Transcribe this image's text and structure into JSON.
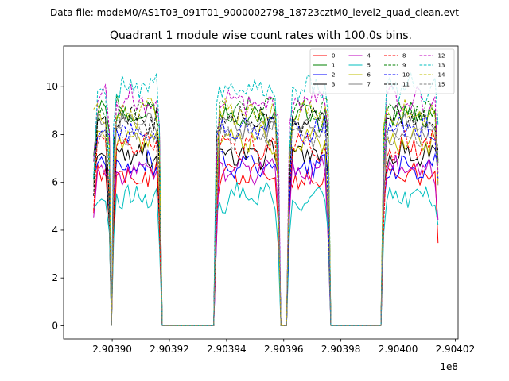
{
  "figure": {
    "suptitle": "Data file: modeM0/AS1T03_091T01_9000002798_18723cztM0_level2_quad_clean.evt"
  },
  "chart_data": {
    "type": "line",
    "title": "Quadrant 1 module wise count rates with 100.0s bins.",
    "xlabel": "",
    "ylabel": "",
    "x_offset_text": "1e8",
    "x_tick_values": [
      2.9039,
      2.90392,
      2.90394,
      2.90396,
      2.90398,
      2.904,
      2.90402
    ],
    "x_tick_labels": [
      "2.90390",
      "2.90392",
      "2.90394",
      "2.90396",
      "2.90398",
      "2.90400",
      "2.90402"
    ],
    "xlim": [
      2.903883,
      2.904021
    ],
    "y_tick_values": [
      0,
      2,
      4,
      6,
      8,
      10
    ],
    "y_tick_labels": [
      "0",
      "2",
      "4",
      "6",
      "8",
      "10"
    ],
    "ylim": [
      -0.55,
      11.7
    ],
    "legend_position": "upper right",
    "legend_columns": 4,
    "bin_width_s": 100,
    "segments": [
      {
        "start": 2.9038935,
        "end": 2.903899,
        "n": 5
      },
      {
        "start": 2.9039005,
        "end": 2.9039165,
        "n": 17
      },
      {
        "start": 2.9039365,
        "end": 2.903958,
        "n": 22
      },
      {
        "start": 2.903962,
        "end": 2.9039755,
        "n": 14
      },
      {
        "start": 2.903995,
        "end": 2.904014,
        "n": 19
      }
    ],
    "gaps": [
      {
        "start": 2.903899,
        "end": 2.9039005
      },
      {
        "start": 2.9039165,
        "end": 2.9039365
      },
      {
        "start": 2.903958,
        "end": 2.903962
      },
      {
        "start": 2.9039755,
        "end": 2.903995
      }
    ],
    "series": [
      {
        "name": "0",
        "color": "#ff0000",
        "dash": "solid",
        "level": 6.2
      },
      {
        "name": "1",
        "color": "#008000",
        "dash": "solid",
        "level": 8.8
      },
      {
        "name": "2",
        "color": "#0000ff",
        "dash": "solid",
        "level": 6.7
      },
      {
        "name": "3",
        "color": "#000000",
        "dash": "solid",
        "level": 7.2
      },
      {
        "name": "4",
        "color": "#bf00bf",
        "dash": "solid",
        "level": 6.5
      },
      {
        "name": "5",
        "color": "#00bfbf",
        "dash": "solid",
        "level": 5.4
      },
      {
        "name": "6",
        "color": "#bfbf00",
        "dash": "solid",
        "level": 7.8
      },
      {
        "name": "7",
        "color": "#808080",
        "dash": "solid",
        "level": 8.4
      },
      {
        "name": "8",
        "color": "#ff0000",
        "dash": "dashed",
        "level": 7.5
      },
      {
        "name": "9",
        "color": "#008000",
        "dash": "dashed",
        "level": 9.1
      },
      {
        "name": "10",
        "color": "#0000ff",
        "dash": "dashed",
        "level": 8.2
      },
      {
        "name": "11",
        "color": "#000000",
        "dash": "dashed",
        "level": 8.6
      },
      {
        "name": "12",
        "color": "#bf00bf",
        "dash": "dashed",
        "level": 9.4
      },
      {
        "name": "13",
        "color": "#00bfbf",
        "dash": "dashed",
        "level": 10.0
      },
      {
        "name": "14",
        "color": "#bfbf00",
        "dash": "dashed",
        "level": 8.9
      },
      {
        "name": "15",
        "color": "#808080",
        "dash": "dashed",
        "level": 8.0
      }
    ]
  }
}
